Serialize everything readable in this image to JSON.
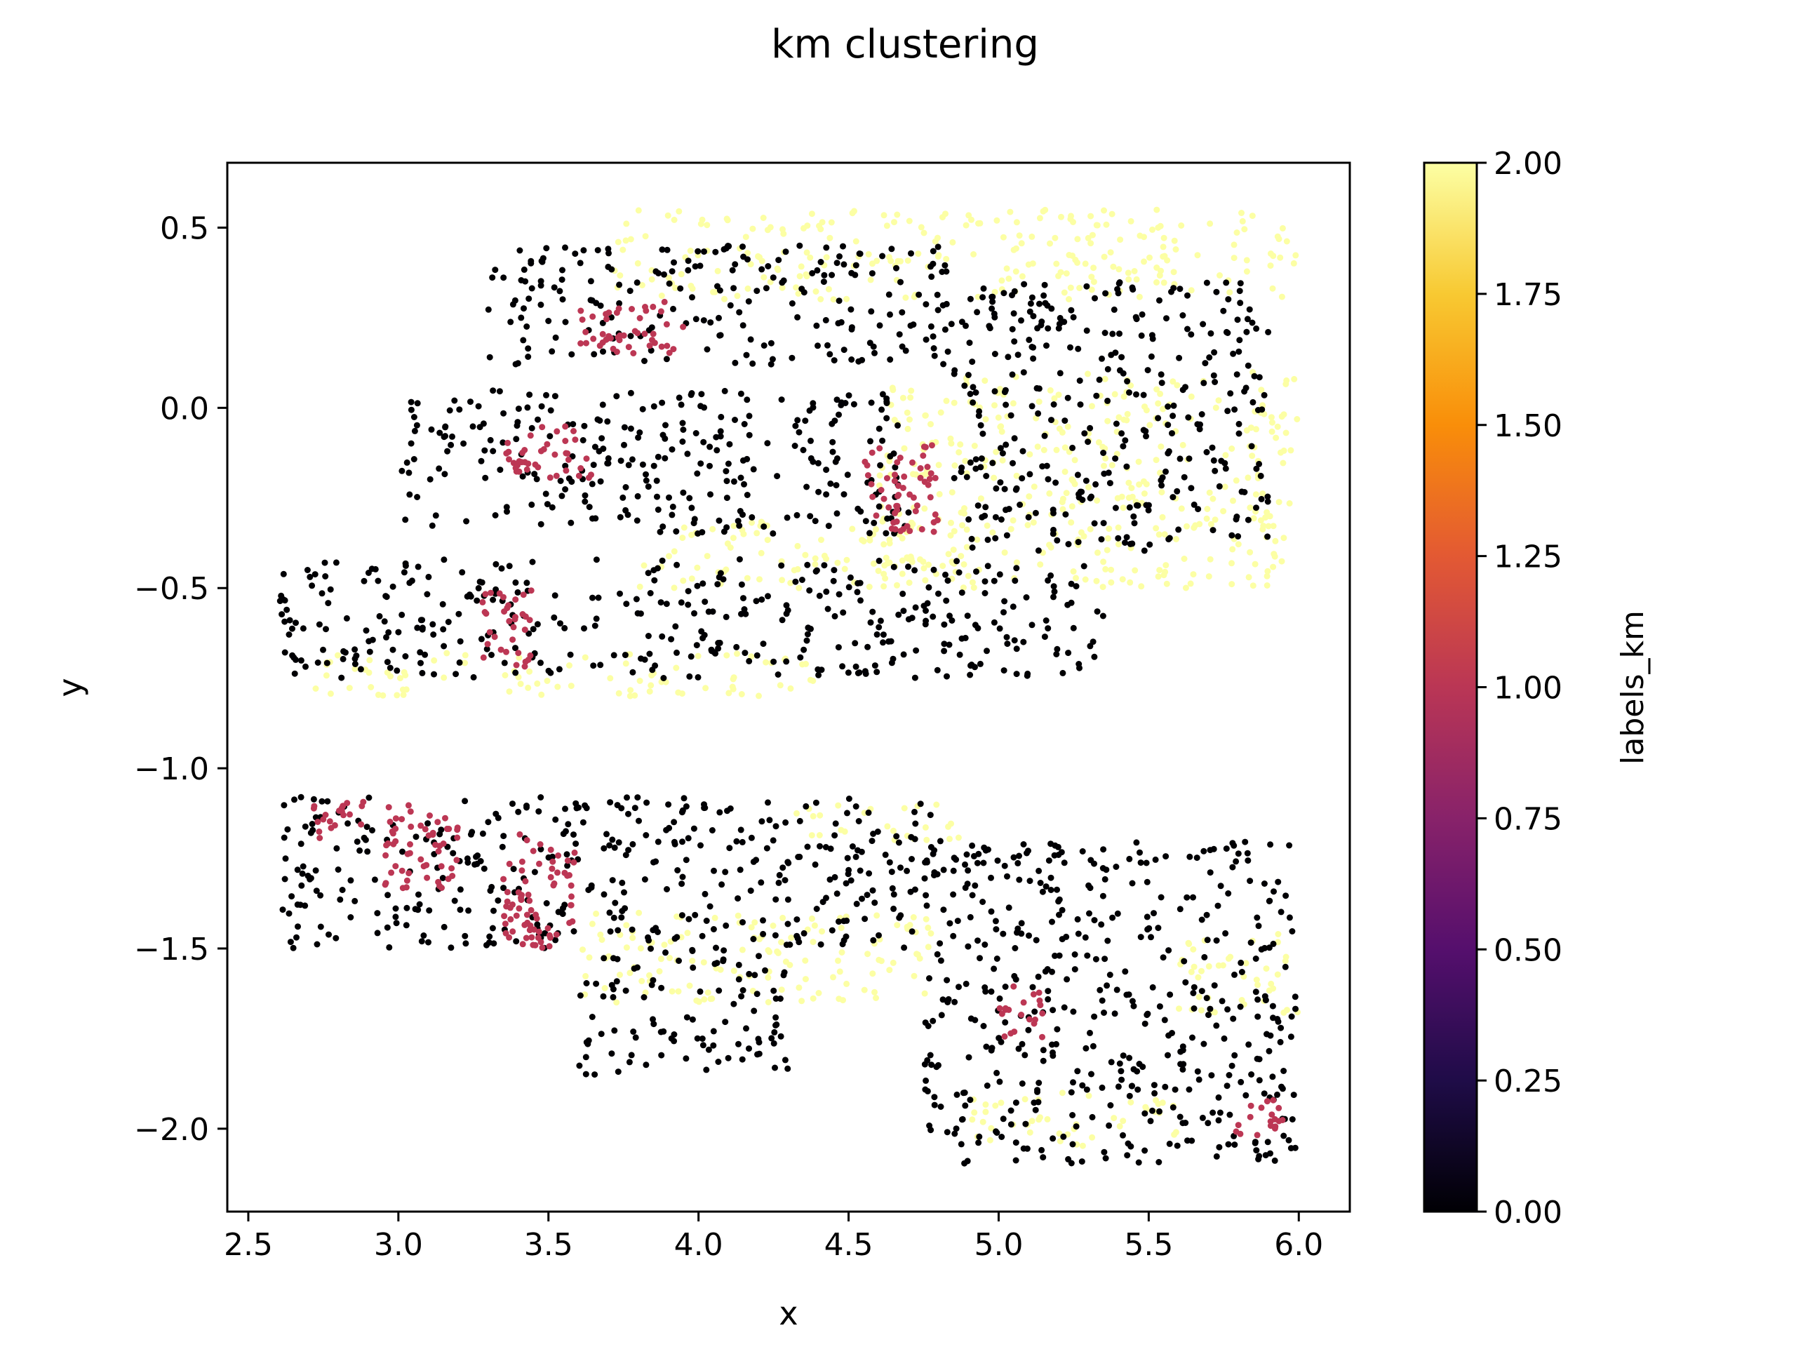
{
  "chart_data": {
    "type": "scatter",
    "title": "km clustering",
    "xlabel": "x",
    "ylabel": "y",
    "xlim": [
      2.43,
      6.17
    ],
    "ylim": [
      -2.23,
      0.68
    ],
    "xticks": [
      2.5,
      3.0,
      3.5,
      4.0,
      4.5,
      5.0,
      5.5,
      6.0
    ],
    "xtick_labels": [
      "2.5",
      "3.0",
      "3.5",
      "4.0",
      "4.5",
      "5.0",
      "5.5",
      "6.0"
    ],
    "yticks": [
      0.5,
      0.0,
      -0.5,
      -1.0,
      -1.5,
      -2.0
    ],
    "ytick_labels": [
      "0.5",
      "0.0",
      "−0.5",
      "−1.0",
      "−1.5",
      "−2.0"
    ],
    "grid": false,
    "colormap": "inferno",
    "colorbar": {
      "label": "labels_km",
      "range": [
        0.0,
        2.0
      ],
      "ticks": [
        0.0,
        0.25,
        0.5,
        0.75,
        1.0,
        1.25,
        1.5,
        1.75,
        2.0
      ],
      "tick_labels": [
        "0.00",
        "0.25",
        "0.50",
        "0.75",
        "1.00",
        "1.25",
        "1.50",
        "1.75",
        "2.00"
      ]
    },
    "cluster_colors": {
      "0": "#000004",
      "1": "#bc3754",
      "2": "#fcffa4"
    },
    "series": [
      {
        "label_value": 0,
        "regions": [
          {
            "x": [
              3.3,
              4.85
            ],
            "y": [
              0.12,
              0.45
            ]
          },
          {
            "x": [
              3.0,
              4.7
            ],
            "y": [
              -0.35,
              0.05
            ]
          },
          {
            "x": [
              4.85,
              5.9
            ],
            "y": [
              -0.4,
              0.35
            ]
          },
          {
            "x": [
              2.6,
              4.7
            ],
            "y": [
              -0.75,
              -0.42
            ]
          },
          {
            "x": [
              4.7,
              5.35
            ],
            "y": [
              -0.75,
              -0.42
            ]
          },
          {
            "x": [
              2.6,
              4.8
            ],
            "y": [
              -1.5,
              -1.08
            ]
          },
          {
            "x": [
              3.6,
              4.3
            ],
            "y": [
              -1.85,
              -1.5
            ]
          },
          {
            "x": [
              4.75,
              6.0
            ],
            "y": [
              -2.1,
              -1.2
            ]
          }
        ]
      },
      {
        "label_value": 1,
        "regions": [
          {
            "x": [
              2.7,
              2.9
            ],
            "y": [
              -1.2,
              -1.09
            ]
          },
          {
            "x": [
              2.95,
              3.2
            ],
            "y": [
              -1.35,
              -1.1
            ]
          },
          {
            "x": [
              3.35,
              3.6
            ],
            "y": [
              -1.5,
              -1.18
            ]
          },
          {
            "x": [
              3.28,
              3.45
            ],
            "y": [
              -0.72,
              -0.5
            ]
          },
          {
            "x": [
              3.35,
              3.65
            ],
            "y": [
              -0.2,
              -0.05
            ]
          },
          {
            "x": [
              3.6,
              3.95
            ],
            "y": [
              0.15,
              0.3
            ]
          },
          {
            "x": [
              4.55,
              4.8
            ],
            "y": [
              -0.35,
              -0.1
            ]
          },
          {
            "x": [
              5.0,
              5.15
            ],
            "y": [
              -1.75,
              -1.6
            ]
          },
          {
            "x": [
              5.75,
              5.95
            ],
            "y": [
              -2.02,
              -1.92
            ]
          }
        ]
      },
      {
        "label_value": 2,
        "regions": [
          {
            "x": [
              3.7,
              6.0
            ],
            "y": [
              0.3,
              0.55
            ]
          },
          {
            "x": [
              4.6,
              6.0
            ],
            "y": [
              -0.5,
              0.1
            ]
          },
          {
            "x": [
              2.7,
              4.4
            ],
            "y": [
              -0.8,
              -0.68
            ]
          },
          {
            "x": [
              3.8,
              4.9
            ],
            "y": [
              -0.5,
              -0.3
            ]
          },
          {
            "x": [
              4.3,
              4.9
            ],
            "y": [
              -1.2,
              -1.1
            ]
          },
          {
            "x": [
              3.6,
              4.8
            ],
            "y": [
              -1.65,
              -1.4
            ]
          },
          {
            "x": [
              4.9,
              5.6
            ],
            "y": [
              -2.05,
              -1.9
            ]
          },
          {
            "x": [
              5.6,
              6.0
            ],
            "y": [
              -1.7,
              -1.45
            ]
          }
        ]
      }
    ]
  }
}
